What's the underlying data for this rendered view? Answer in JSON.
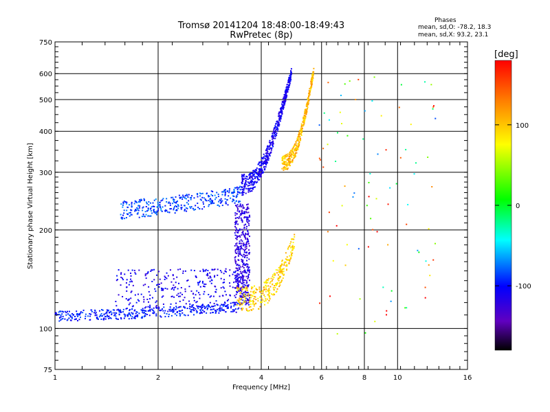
{
  "chart_data": {
    "type": "scatter",
    "title": "Tromsø 20141204 18:48:00-18:49:43",
    "subtitle": "RwPretec (8p)",
    "xlabel": "Frequency [MHz]",
    "ylabel": "Stationary phase Virtual Height [km]",
    "x_scale": "log",
    "y_scale": "log",
    "xlim": [
      1,
      16
    ],
    "ylim": [
      75,
      750
    ],
    "x_ticks": [
      "1",
      "2",
      "4",
      "6",
      "8",
      "10",
      "16"
    ],
    "y_ticks": [
      "75",
      "100",
      "200",
      "300",
      "400",
      "500",
      "600",
      "750"
    ],
    "grid": true,
    "stats": {
      "heading": "Phases",
      "o_mode": "mean, sd,O: -78.2, 18.3",
      "x_mode": "mean, sd,X:  93.2, 23.1"
    },
    "colorbar": {
      "label": "[deg]",
      "range": [
        -180,
        180
      ],
      "ticks": [
        "100",
        "0",
        "-100"
      ],
      "colors": [
        "#ff0000",
        "#ff7f00",
        "#ffff00",
        "#00ff00",
        "#00ffff",
        "#0000ff",
        "#8000ff",
        "#000000"
      ]
    },
    "clusters": [
      {
        "trace": "E-layer low O",
        "f": [
          1.0,
          3.5
        ],
        "h": [
          103,
          118
        ],
        "phase": -95
      },
      {
        "trace": "E-layer scatter",
        "f": [
          1.5,
          3.5
        ],
        "h": [
          115,
          155
        ],
        "phase": -110
      },
      {
        "trace": "E O-cusp",
        "f": [
          3.4,
          3.7
        ],
        "h": [
          118,
          240
        ],
        "phase": -120
      },
      {
        "trace": "E X-trace",
        "f": [
          3.4,
          5.0
        ],
        "h": [
          110,
          180
        ],
        "phase": 95
      },
      {
        "trace": "F1 O",
        "f": [
          1.5,
          3.5
        ],
        "h": [
          212,
          255
        ],
        "phase": -85
      },
      {
        "trace": "F O-trace",
        "f": [
          3.5,
          4.9
        ],
        "h": [
          270,
          640
        ],
        "phase": -110
      },
      {
        "trace": "F X-trace",
        "f": [
          4.6,
          5.7
        ],
        "h": [
          315,
          640
        ],
        "phase": 105
      },
      {
        "trace": "sporadic",
        "f": [
          5.9,
          13.0
        ],
        "h": [
          90,
          600
        ],
        "phase": 60
      }
    ]
  }
}
